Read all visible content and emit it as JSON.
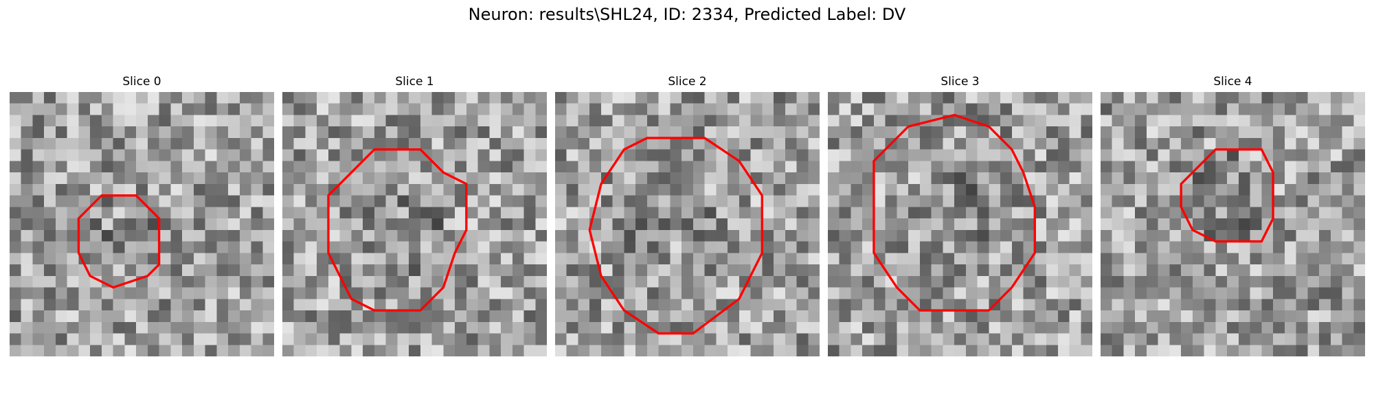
{
  "figure": {
    "title": "Neuron: results\\SHL24, ID: 2334, Predicted Label: DV",
    "contour_color": "#ff0000",
    "colormap": "gray",
    "panels": [
      {
        "title": "Slice 0",
        "seed": 11,
        "grid": 23,
        "image": "noisy grayscale microscopy patch with dark cell body in centre",
        "roi": [
          [
            8,
            9
          ],
          [
            11,
            9
          ],
          [
            13,
            11
          ],
          [
            13,
            15
          ],
          [
            12,
            16
          ],
          [
            9,
            17
          ],
          [
            7,
            16
          ],
          [
            6,
            14
          ],
          [
            6,
            11
          ]
        ]
      },
      {
        "title": "Slice 1",
        "seed": 23,
        "grid": 23,
        "image": "noisy grayscale microscopy patch with larger cell body",
        "roi": [
          [
            8,
            5
          ],
          [
            12,
            5
          ],
          [
            14,
            7
          ],
          [
            16,
            8
          ],
          [
            16,
            12
          ],
          [
            15,
            14
          ],
          [
            14,
            17
          ],
          [
            12,
            19
          ],
          [
            8,
            19
          ],
          [
            6,
            18
          ],
          [
            5,
            16
          ],
          [
            4,
            14
          ],
          [
            4,
            9
          ],
          [
            6,
            7
          ]
        ]
      },
      {
        "title": "Slice 2",
        "seed": 37,
        "grid": 23,
        "image": "grayscale patch with bright circular cell and dark top spot",
        "roi": [
          [
            8,
            4
          ],
          [
            13,
            4
          ],
          [
            16,
            6
          ],
          [
            18,
            9
          ],
          [
            18,
            14
          ],
          [
            16,
            18
          ],
          [
            12,
            21
          ],
          [
            9,
            21
          ],
          [
            6,
            19
          ],
          [
            4,
            16
          ],
          [
            3,
            12
          ],
          [
            4,
            8
          ],
          [
            6,
            5
          ]
        ]
      },
      {
        "title": "Slice 3",
        "seed": 53,
        "grid": 23,
        "image": "noisy grayscale patch with large round cell",
        "roi": [
          [
            7,
            3
          ],
          [
            11,
            2
          ],
          [
            14,
            3
          ],
          [
            16,
            5
          ],
          [
            17,
            7
          ],
          [
            18,
            10
          ],
          [
            18,
            14
          ],
          [
            16,
            17
          ],
          [
            14,
            19
          ],
          [
            8,
            19
          ],
          [
            6,
            17
          ],
          [
            4,
            14
          ],
          [
            4,
            10
          ],
          [
            4,
            6
          ]
        ]
      },
      {
        "title": "Slice 4",
        "seed": 71,
        "grid": 23,
        "image": "grayscale patch with dark region on left and small outlined cell",
        "roi": [
          [
            10,
            5
          ],
          [
            14,
            5
          ],
          [
            15,
            7
          ],
          [
            15,
            11
          ],
          [
            14,
            13
          ],
          [
            10,
            13
          ],
          [
            8,
            12
          ],
          [
            7,
            10
          ],
          [
            7,
            8
          ],
          [
            8,
            7
          ]
        ]
      }
    ]
  }
}
